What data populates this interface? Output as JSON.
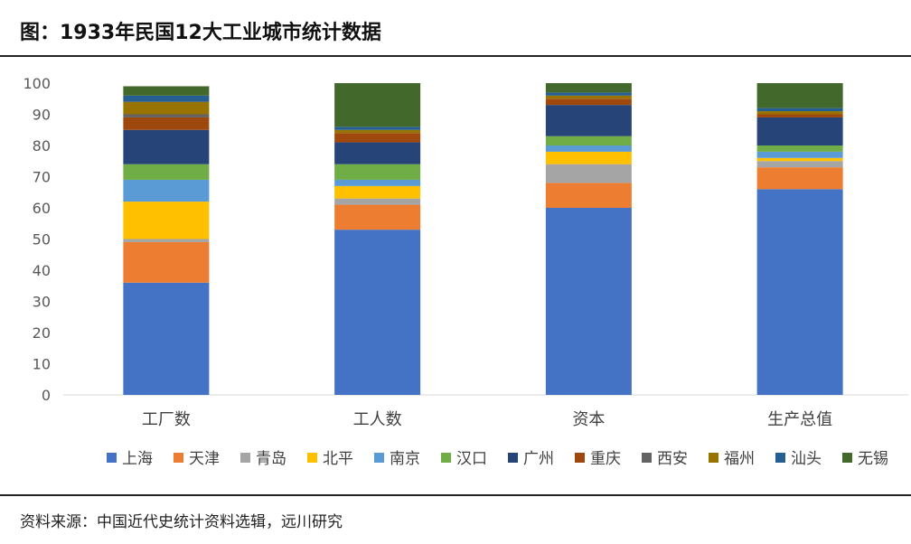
{
  "title": "图：1933年民国12大工业城市统计数据",
  "source": "资料来源：中国近代史统计资料选辑，远川研究",
  "chart_data": {
    "type": "bar",
    "stacked": true,
    "categories": [
      "工厂数",
      "工人数",
      "资本",
      "生产总值"
    ],
    "ylim": [
      0,
      100
    ],
    "yticks": [
      0,
      10,
      20,
      30,
      40,
      50,
      60,
      70,
      80,
      90,
      100
    ],
    "grid": false,
    "legend_position": "bottom",
    "series": [
      {
        "name": "上海",
        "color": "#4472c4",
        "values": [
          36,
          53,
          60,
          66
        ]
      },
      {
        "name": "天津",
        "color": "#ed7d31",
        "values": [
          13,
          8,
          8,
          7
        ]
      },
      {
        "name": "青岛",
        "color": "#a5a5a5",
        "values": [
          1,
          2,
          6,
          2
        ]
      },
      {
        "name": "北平",
        "color": "#ffc000",
        "values": [
          12,
          4,
          4,
          1
        ]
      },
      {
        "name": "南京",
        "color": "#5b9bd5",
        "values": [
          7,
          2,
          2,
          2
        ]
      },
      {
        "name": "汉口",
        "color": "#70ad47",
        "values": [
          5,
          5,
          3,
          2
        ]
      },
      {
        "name": "广州",
        "color": "#264478",
        "values": [
          11,
          7,
          10,
          9
        ]
      },
      {
        "name": "重庆",
        "color": "#9e480e",
        "values": [
          4,
          3,
          2,
          1
        ]
      },
      {
        "name": "西安",
        "color": "#636363",
        "values": [
          1,
          0,
          0,
          0
        ]
      },
      {
        "name": "福州",
        "color": "#997300",
        "values": [
          4,
          1,
          1,
          1
        ]
      },
      {
        "name": "汕头",
        "color": "#255e91",
        "values": [
          2,
          1,
          1,
          1
        ]
      },
      {
        "name": "无锡",
        "color": "#43682b",
        "values": [
          3,
          14,
          3,
          8
        ]
      }
    ]
  }
}
